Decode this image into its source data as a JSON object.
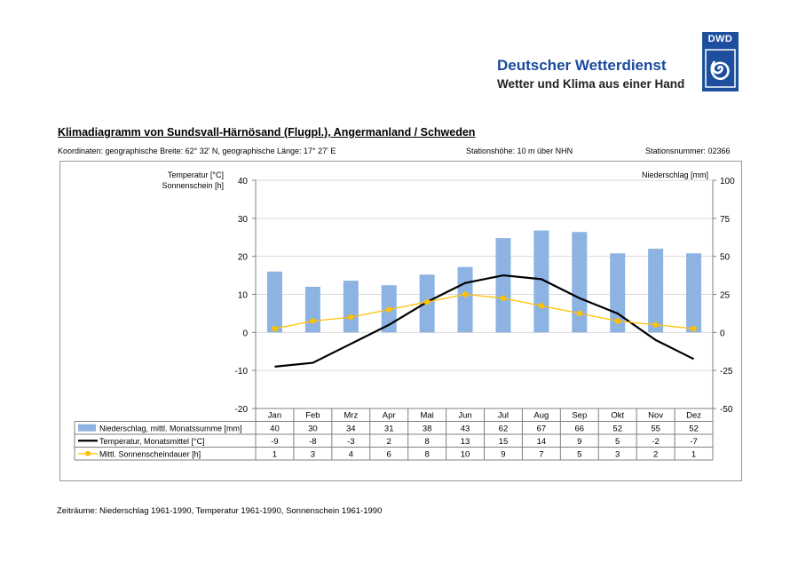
{
  "brand": {
    "name": "Deutscher Wetterdienst",
    "tagline": "Wetter und Klima aus einer Hand",
    "logo_text": "DWD",
    "logo_color": "#1d4f9e"
  },
  "header": {
    "title": "Klimadiagramm von Sundsvall-Härnösand  (Flugpl.), Angermanland / Schweden",
    "coordinates": "Koordinaten: geographische Breite: 62° 32' N, geographische Länge: 17° 27' E",
    "altitude": "Stationshöhe: 10 m über NHN",
    "station_number": "Stationsnummer: 02366"
  },
  "footer": {
    "periods": "Zeiträume: Niederschlag 1961-1990, Temperatur 1961-1990, Sonnenschein 1961-1990"
  },
  "chart_data": {
    "type": "bar",
    "categories": [
      "Jan",
      "Feb",
      "Mrz",
      "Apr",
      "Mai",
      "Jun",
      "Jul",
      "Aug",
      "Sep",
      "Okt",
      "Nov",
      "Dez"
    ],
    "left_axis_label": [
      "Temperatur [°C]",
      "Sonnenschein [h]"
    ],
    "right_axis_label": "Niederschlag [mm]",
    "left_ylim": [
      -20,
      40
    ],
    "left_ticks": [
      40,
      30,
      20,
      10,
      0,
      -10,
      -20
    ],
    "right_ylim": [
      -50,
      100
    ],
    "right_ticks": [
      100,
      75,
      50,
      25,
      0,
      -25,
      -50
    ],
    "grid": true,
    "series": [
      {
        "name": "Niederschlag, mittl. Monatssumme [mm]",
        "type": "bar",
        "axis": "right",
        "color": "#8db3e2",
        "values": [
          40,
          30,
          34,
          31,
          38,
          43,
          62,
          67,
          66,
          52,
          55,
          52
        ]
      },
      {
        "name": "Temperatur, Monatsmittel [°C]",
        "type": "line",
        "axis": "left",
        "color": "#000000",
        "values": [
          -9,
          -8,
          -3,
          2,
          8,
          13,
          15,
          14,
          9,
          5,
          -2,
          -7
        ]
      },
      {
        "name": "Mittl. Sonnenscheindauer [h]",
        "type": "line-marker",
        "axis": "left",
        "color": "#ffc000",
        "values": [
          1,
          3,
          4,
          6,
          8,
          10,
          9,
          7,
          5,
          3,
          2,
          1
        ]
      }
    ]
  }
}
